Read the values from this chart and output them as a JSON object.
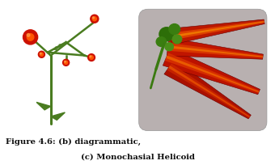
{
  "fig_width": 3.4,
  "fig_height": 2.04,
  "dpi": 100,
  "bg_color": "#ffffff",
  "caption_line1": "Figure 4.6: (b) diagrammatic,",
  "caption_line2": "(c) Monochasial Helicoid",
  "caption_fontsize": 7.2,
  "stem_color": "#4a7c20",
  "flower_red": "#cc1100",
  "flower_orange": "#ff5500",
  "leaf_color": "#4a7c20",
  "photo_bg": "#b8b0b0",
  "stem_lw": 2.2,
  "branch_lw": 1.8
}
